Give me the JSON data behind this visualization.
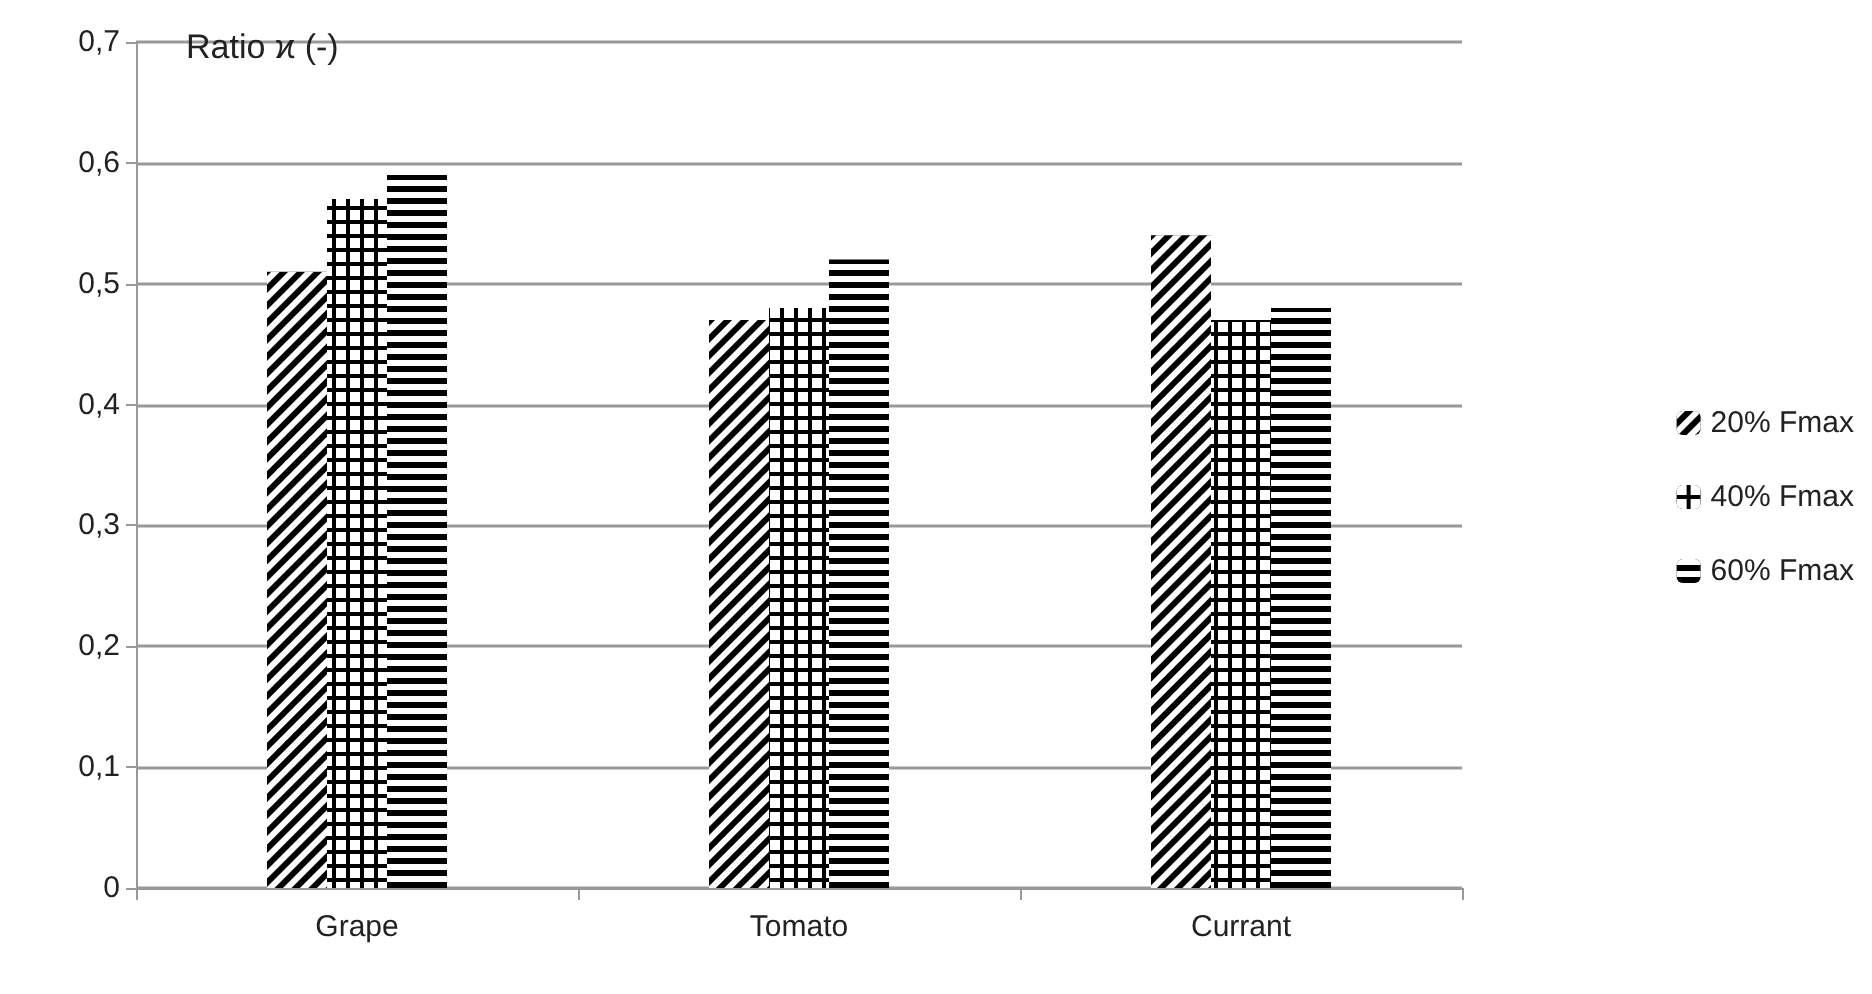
{
  "chart_data": {
    "type": "bar",
    "ylabel": "Ratio ϰ (-)",
    "categories": [
      "Grape",
      "Tomato",
      "Currant"
    ],
    "series": [
      {
        "name": "20% Fmax",
        "color": "#000000",
        "values": [
          0.51,
          0.47,
          0.54
        ]
      },
      {
        "name": "40% Fmax",
        "color": "#000000",
        "values": [
          0.57,
          0.48,
          0.47
        ]
      },
      {
        "name": "60% Fmax",
        "color": "#000000",
        "values": [
          0.59,
          0.52,
          0.48
        ]
      }
    ],
    "ylim": [
      0,
      0.7
    ],
    "yticks": [
      0,
      {
        "value": 0.1,
        "label": "0,1"
      },
      {
        "value": 0.2,
        "label": "0,2"
      },
      {
        "value": 0.3,
        "label": "0,3"
      },
      {
        "value": 0.4,
        "label": "0,4"
      },
      {
        "value": 0.5,
        "label": "0,5"
      },
      {
        "value": 0.6,
        "label": "0,6"
      },
      {
        "value": 0.7,
        "label": "0,7"
      }
    ],
    "grid": "y",
    "legend": "right"
  }
}
